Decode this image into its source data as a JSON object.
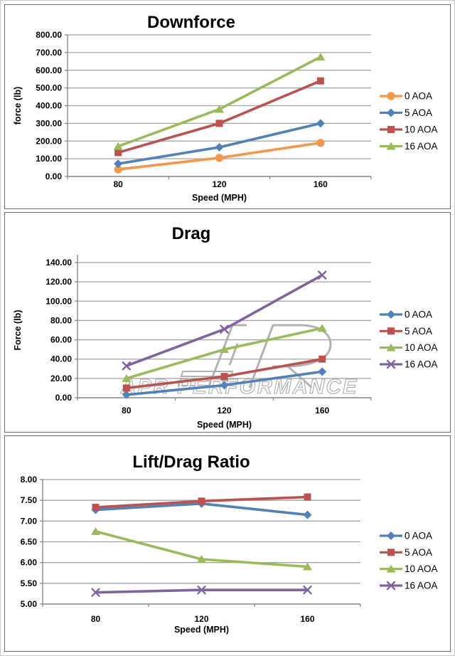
{
  "style": {
    "grid_color": "#a3a3a3",
    "axis_color": "#8a8a8a",
    "text_color": "#000000",
    "panel_border_color": "#6e6e6e",
    "watermark_color": "#aeaeae",
    "background": "#ffffff"
  },
  "chart_data": [
    {
      "type": "line",
      "title": "Downforce",
      "xlabel": "Speed (MPH)",
      "ylabel": "force (lb)",
      "x_tick_labels": [
        "80",
        "120",
        "160"
      ],
      "x": [
        80,
        120,
        160
      ],
      "ylim": [
        0,
        800
      ],
      "y_step": 100,
      "y_tick_labels": [
        "0.00",
        "100.00",
        "200.00",
        "300.00",
        "400.00",
        "500.00",
        "600.00",
        "700.00",
        "800.00"
      ],
      "grid": true,
      "legend_position": "right",
      "series": [
        {
          "name": "0 AOA",
          "color": "#F79646",
          "marker": "circle",
          "values": [
            40,
            105,
            190
          ]
        },
        {
          "name": "5 AOA",
          "color": "#4F81BD",
          "marker": "diamond",
          "values": [
            72,
            165,
            300
          ]
        },
        {
          "name": "10 AOA",
          "color": "#C0504D",
          "marker": "square",
          "values": [
            135,
            300,
            540
          ]
        },
        {
          "name": "16 AOA",
          "color": "#9BBB59",
          "marker": "triangle",
          "values": [
            170,
            380,
            675
          ]
        }
      ]
    },
    {
      "type": "line",
      "title": "Drag",
      "xlabel": "Speed (MPH)",
      "ylabel": "Force (lb)",
      "x_tick_labels": [
        "80",
        "120",
        "160"
      ],
      "x": [
        80,
        120,
        160
      ],
      "ylim": [
        0,
        140
      ],
      "y_step": 20,
      "y_tick_labels": [
        "0.00",
        "20.00",
        "40.00",
        "60.00",
        "80.00",
        "100.00",
        "120.00",
        "140.00"
      ],
      "grid": true,
      "legend_position": "right",
      "watermark": {
        "text": "APR PERFORMANCE",
        "logo": "apr-logo"
      },
      "series": [
        {
          "name": "0 AOA",
          "color": "#4F81BD",
          "marker": "diamond",
          "values": [
            3,
            13,
            27
          ]
        },
        {
          "name": "5 AOA",
          "color": "#C0504D",
          "marker": "square",
          "values": [
            10,
            22,
            40
          ]
        },
        {
          "name": "10 AOA",
          "color": "#9BBB59",
          "marker": "triangle",
          "values": [
            20,
            50,
            72
          ]
        },
        {
          "name": "16 AOA",
          "color": "#8064A2",
          "marker": "x",
          "values": [
            33,
            71,
            127
          ]
        }
      ]
    },
    {
      "type": "line",
      "title": "Lift/Drag Ratio",
      "xlabel": "Speed (MPH)",
      "ylabel": "",
      "x_tick_labels": [
        "80",
        "120",
        "160"
      ],
      "x": [
        80,
        120,
        160
      ],
      "ylim": [
        5,
        8
      ],
      "y_step": 0.5,
      "y_tick_labels": [
        "5.00",
        "5.50",
        "6.00",
        "6.50",
        "7.00",
        "7.50",
        "8.00"
      ],
      "grid": true,
      "legend_position": "right",
      "series": [
        {
          "name": "0 AOA",
          "color": "#4F81BD",
          "marker": "diamond",
          "values": [
            7.27,
            7.42,
            7.15
          ]
        },
        {
          "name": "5 AOA",
          "color": "#C0504D",
          "marker": "square",
          "values": [
            7.33,
            7.48,
            7.58
          ]
        },
        {
          "name": "10 AOA",
          "color": "#9BBB59",
          "marker": "triangle",
          "values": [
            6.75,
            6.08,
            5.9
          ]
        },
        {
          "name": "16 AOA",
          "color": "#8064A2",
          "marker": "x",
          "values": [
            5.28,
            5.34,
            5.34
          ]
        }
      ]
    }
  ]
}
